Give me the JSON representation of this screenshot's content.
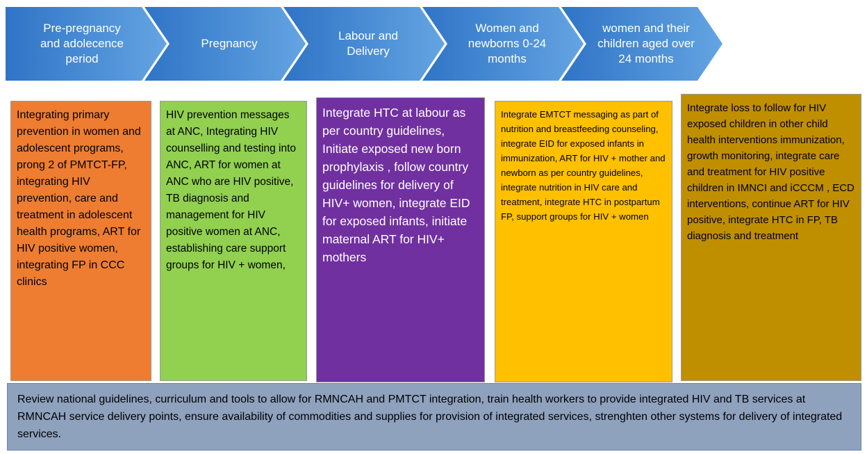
{
  "stages": [
    {
      "label": "Pre-pregnancy and adolecence period",
      "text": "Integrating primary prevention in women and adolescent programs, prong 2 of PMTCT-FP, integrating HIV prevention, care and treatment in adolescent health programs, ART for HIV positive women, integrating FP in CCC clinics"
    },
    {
      "label": "Pregnancy",
      "text": "HIV prevention messages at ANC, Integrating HIV counselling and testing into ANC, ART for women at ANC who are HIV positive, TB diagnosis and management for HIV positive women at ANC, establishing care support groups for HIV + women,"
    },
    {
      "label": "Labour and Delivery",
      "text": "Integrate HTC at labour as per country guidelines, Initiate exposed new born prophylaxis , follow country guidelines for delivery of HIV+ women, integrate EID for exposed infants, initiate maternal ART for HIV+ mothers"
    },
    {
      "label": "Women and newborns 0-24 months",
      "text": "Integrate EMTCT messaging as part of nutrition and breastfeeding counseling, integrate EID for exposed infants in immunization, ART for HIV + mother and newborn as per country guidelines, integrate nutrition in HIV care and treatment, integrate HTC in postpartum FP, support groups for HIV + women"
    },
    {
      "label": "women and their children aged over 24 months",
      "text": "Integrate loss to follow for HIV exposed children in other child health interventions immunization, growth monitoring, integrate care and treatment for HIV positive children in IMNCI and iCCCM , ECD interventions, continue ART for HIV positive, integrate HTC in FP, TB diagnosis and treatment"
    }
  ],
  "footer": "Review national guidelines, curriculum and tools to allow for RMNCAH and PMTCT integration, train health workers to provide integrated HIV and TB services at RMNCAH service delivery points, ensure availability of commodities and supplies for provision of integrated services, strenghten other systems for delivery of integrated services."
}
